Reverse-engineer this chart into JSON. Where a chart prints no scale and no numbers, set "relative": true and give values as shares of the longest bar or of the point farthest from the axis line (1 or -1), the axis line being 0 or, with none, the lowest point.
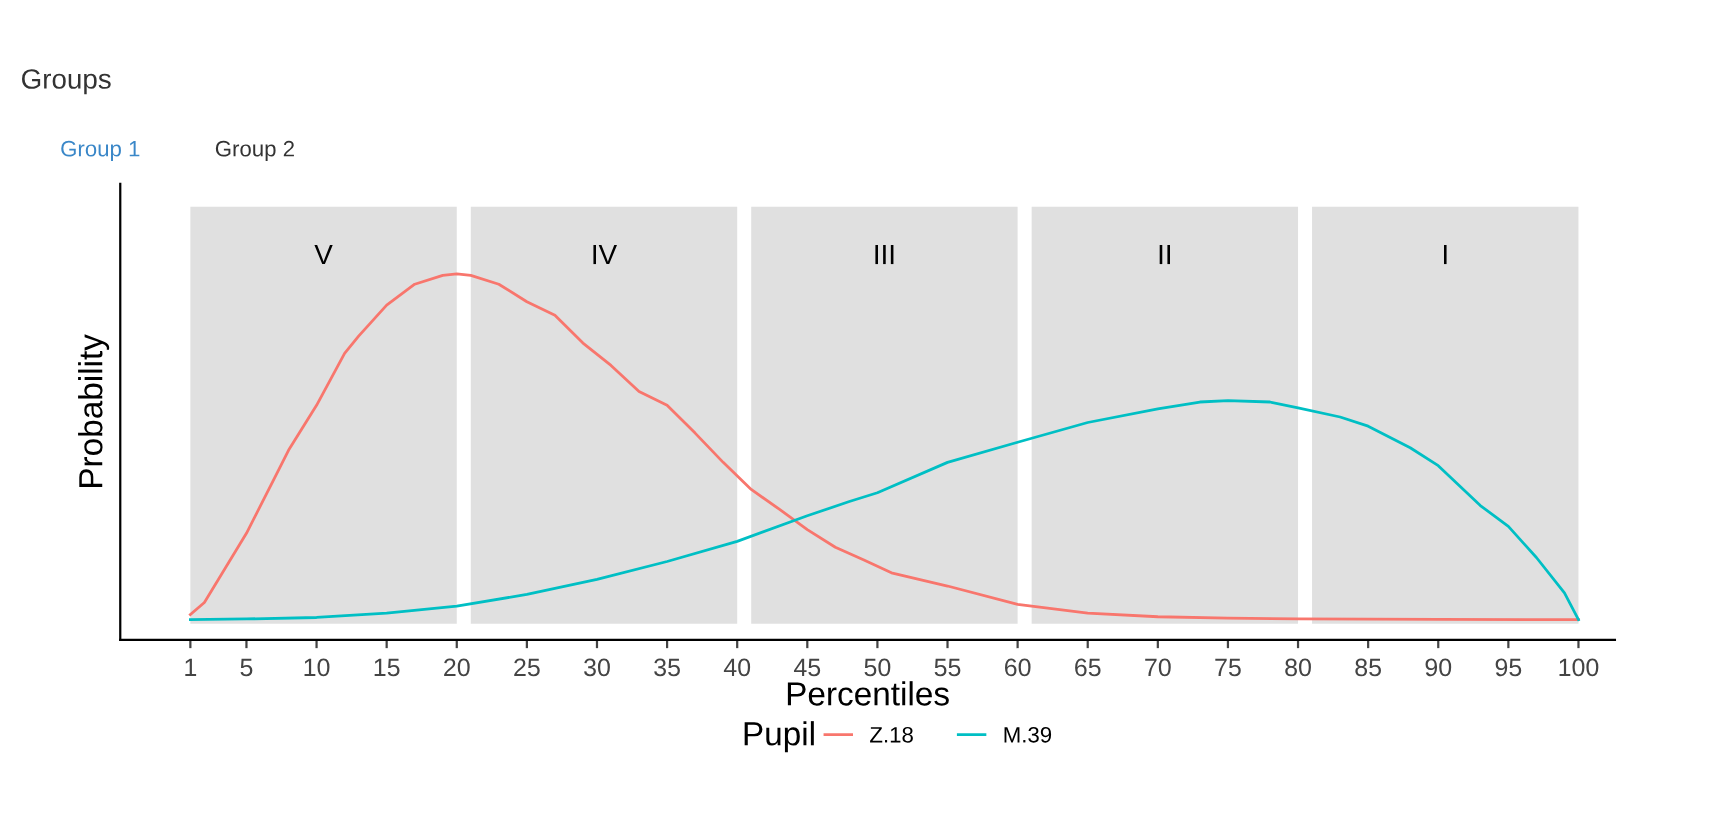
{
  "chart_data": {
    "type": "line",
    "title": "Groups",
    "annotations": [
      "Group 1",
      "Group 2"
    ],
    "xlabel": "Percentiles",
    "ylabel": "Probability",
    "legend_title": "Pupil",
    "legend": "bottom",
    "relative": true,
    "grid": false,
    "xlim": [
      -4,
      102.6
    ],
    "xticks": [
      1,
      5,
      10,
      15,
      20,
      25,
      30,
      35,
      40,
      45,
      50,
      55,
      60,
      65,
      70,
      75,
      80,
      85,
      90,
      95,
      100
    ],
    "bands": [
      {
        "axis": "x",
        "from": 1,
        "to": 20,
        "label": "V",
        "color": "#e0e0e0"
      },
      {
        "axis": "x",
        "from": 21,
        "to": 40,
        "label": "IV",
        "color": "#e0e0e0"
      },
      {
        "axis": "x",
        "from": 41,
        "to": 60,
        "label": "III",
        "color": "#e0e0e0"
      },
      {
        "axis": "x",
        "from": 61,
        "to": 80,
        "label": "II",
        "color": "#e0e0e0"
      },
      {
        "axis": "x",
        "from": 81,
        "to": 100,
        "label": "I",
        "color": "#e0e0e0"
      }
    ],
    "series": [
      {
        "name": "Z.18",
        "color": "#f8766d",
        "x": [
          1,
          2,
          5,
          7,
          8,
          10,
          12,
          13,
          15,
          17,
          19,
          20,
          21,
          23,
          25,
          27,
          29,
          31,
          33,
          35,
          37,
          39,
          41,
          43,
          45,
          47,
          49,
          51,
          55,
          60,
          65,
          70,
          75,
          80,
          90,
          100
        ],
        "values": [
          0.069,
          0.102,
          0.291,
          0.442,
          0.518,
          0.641,
          0.783,
          0.83,
          0.915,
          0.972,
          0.996,
          1,
          0.996,
          0.972,
          0.924,
          0.887,
          0.811,
          0.75,
          0.679,
          0.641,
          0.565,
          0.485,
          0.411,
          0.357,
          0.301,
          0.253,
          0.219,
          0.183,
          0.147,
          0.097,
          0.073,
          0.063,
          0.059,
          0.057,
          0.056,
          0.055
        ]
      },
      {
        "name": "M.39",
        "color": "#00bfc4",
        "x": [
          1,
          5,
          10,
          15,
          20,
          25,
          30,
          35,
          40,
          45,
          48,
          50,
          55,
          60,
          65,
          70,
          73,
          75,
          78,
          80,
          83,
          85,
          88,
          90,
          93,
          95,
          97,
          99,
          100
        ],
        "values": [
          0.055,
          0.057,
          0.061,
          0.073,
          0.092,
          0.124,
          0.165,
          0.214,
          0.269,
          0.339,
          0.378,
          0.402,
          0.485,
          0.54,
          0.594,
          0.631,
          0.65,
          0.654,
          0.65,
          0.634,
          0.609,
          0.584,
          0.525,
          0.476,
          0.367,
          0.31,
          0.225,
          0.128,
          0.055
        ]
      }
    ]
  }
}
